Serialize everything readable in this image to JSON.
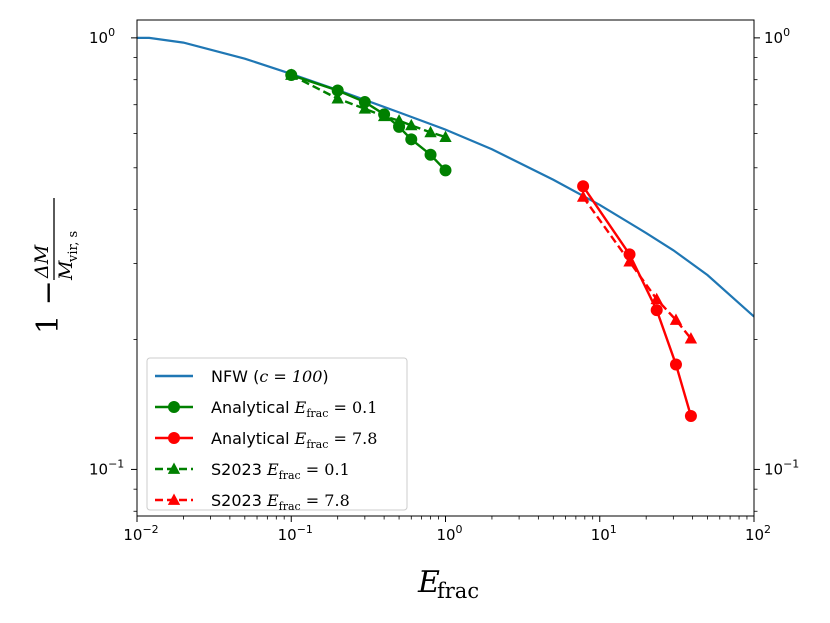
{
  "chart_data": {
    "type": "line",
    "xscale": "log",
    "yscale": "log",
    "xlim": [
      0.01,
      100
    ],
    "ylim": [
      0.078,
      1.1
    ],
    "xlabel": {
      "main": "E",
      "sub": "frac"
    },
    "ylabel": {
      "lead": "1 − ",
      "num": "ΔM",
      "den_main": "M",
      "den_sub": "vir, s"
    },
    "x_ticks": [
      {
        "value": 0.01,
        "base": "10",
        "exp": "−2"
      },
      {
        "value": 0.1,
        "base": "10",
        "exp": "−1"
      },
      {
        "value": 1,
        "base": "10",
        "exp": "0"
      },
      {
        "value": 10,
        "base": "10",
        "exp": "1"
      },
      {
        "value": 100,
        "base": "10",
        "exp": "2"
      }
    ],
    "y_ticks": [
      {
        "value": 0.1,
        "base": "10",
        "exp": "−1"
      },
      {
        "value": 1,
        "base": "10",
        "exp": "0"
      }
    ],
    "legend_position": "lower-left",
    "series": [
      {
        "name": "NFW (c = 100)",
        "label_text": "NFW (",
        "label_math": "c = 100",
        "label_end": ")",
        "color": "#1f77b4",
        "marker": "none",
        "linestyle": "solid",
        "x": [
          0.01,
          0.012,
          0.02,
          0.05,
          0.1,
          0.2,
          0.5,
          1,
          2,
          5,
          10,
          20,
          30,
          50,
          100
        ],
        "y": [
          1.0,
          1.0,
          0.975,
          0.895,
          0.825,
          0.757,
          0.672,
          0.613,
          0.552,
          0.469,
          0.41,
          0.353,
          0.322,
          0.282,
          0.226
        ]
      },
      {
        "name": "Analytical E_frac = 0.1",
        "label_text": "Analytical ",
        "label_math_main": "E",
        "label_math_sub": "frac",
        "label_math_rest": " = 0.1",
        "color": "#008000",
        "marker": "circle",
        "linestyle": "solid",
        "x": [
          0.1,
          0.2,
          0.3,
          0.4,
          0.5,
          0.6,
          0.8,
          1.0
        ],
        "y": [
          0.82,
          0.755,
          0.71,
          0.665,
          0.622,
          0.582,
          0.536,
          0.493
        ]
      },
      {
        "name": "Analytical E_frac = 7.8",
        "label_text": "Analytical ",
        "label_math_main": "E",
        "label_math_sub": "frac",
        "label_math_rest": " = 7.8",
        "color": "#ff0000",
        "marker": "circle",
        "linestyle": "solid",
        "x": [
          7.8,
          15.6,
          23.4,
          31.2,
          39.0
        ],
        "y": [
          0.453,
          0.315,
          0.234,
          0.175,
          0.133
        ]
      },
      {
        "name": "S2023 E_frac = 0.1",
        "label_text": "S2023 ",
        "label_math_main": "E",
        "label_math_sub": "frac",
        "label_math_rest": " = 0.1",
        "color": "#008000",
        "marker": "triangle",
        "linestyle": "dashed",
        "x": [
          0.1,
          0.2,
          0.3,
          0.4,
          0.5,
          0.6,
          0.8,
          1.0
        ],
        "y": [
          0.82,
          0.723,
          0.685,
          0.658,
          0.643,
          0.627,
          0.604,
          0.589
        ]
      },
      {
        "name": "S2023 E_frac = 7.8",
        "label_text": "S2023 ",
        "label_math_main": "E",
        "label_math_sub": "frac",
        "label_math_rest": " = 7.8",
        "color": "#ff0000",
        "marker": "triangle",
        "linestyle": "dashed",
        "x": [
          7.8,
          15.6,
          23.4,
          31.2,
          39.0
        ],
        "y": [
          0.428,
          0.303,
          0.248,
          0.222,
          0.201
        ]
      }
    ]
  }
}
